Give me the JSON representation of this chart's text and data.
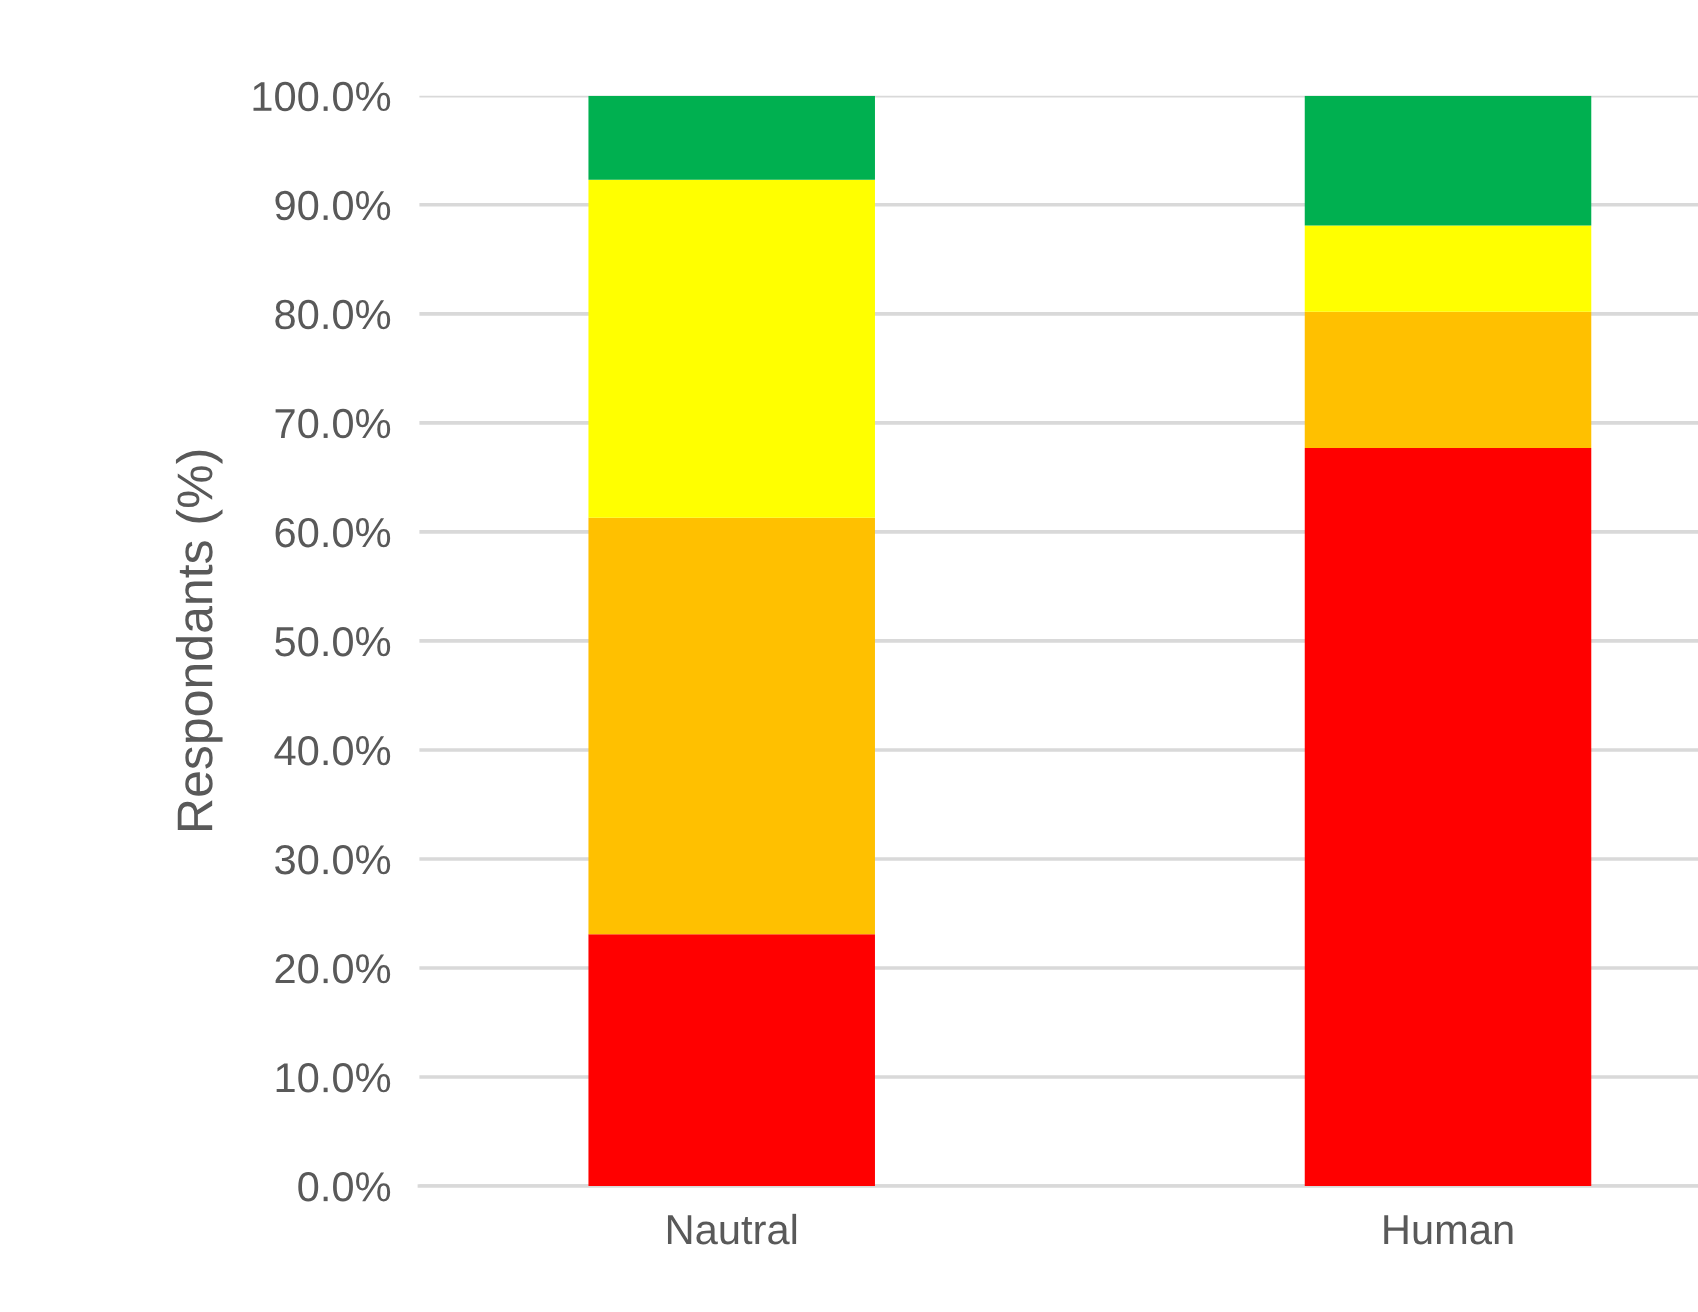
{
  "chart_data": {
    "type": "bar",
    "stacked": true,
    "ylabel": "Respondants (%)",
    "categories": [
      "Nautral",
      "Human"
    ],
    "series": [
      {
        "color": "#ff0000",
        "values": [
          23.1,
          67.7
        ]
      },
      {
        "color": "#ffc000",
        "values": [
          38.2,
          12.5
        ]
      },
      {
        "color": "#ffff00",
        "values": [
          31.0,
          7.9
        ]
      },
      {
        "color": "#00b050",
        "values": [
          7.7,
          11.9
        ]
      }
    ],
    "ylim": [
      0,
      100
    ],
    "yticks": [
      {
        "value": 0,
        "label": "0.0%"
      },
      {
        "value": 10,
        "label": "10.0%"
      },
      {
        "value": 20,
        "label": "20.0%"
      },
      {
        "value": 30,
        "label": "30.0%"
      },
      {
        "value": 40,
        "label": "40.0%"
      },
      {
        "value": 50,
        "label": "50.0%"
      },
      {
        "value": 60,
        "label": "60.0%"
      },
      {
        "value": 70,
        "label": "70.0%"
      },
      {
        "value": 80,
        "label": "80.0%"
      },
      {
        "value": 90,
        "label": "90.0%"
      },
      {
        "value": 100,
        "label": "100.0%"
      }
    ],
    "grid": "y",
    "legend": false
  }
}
